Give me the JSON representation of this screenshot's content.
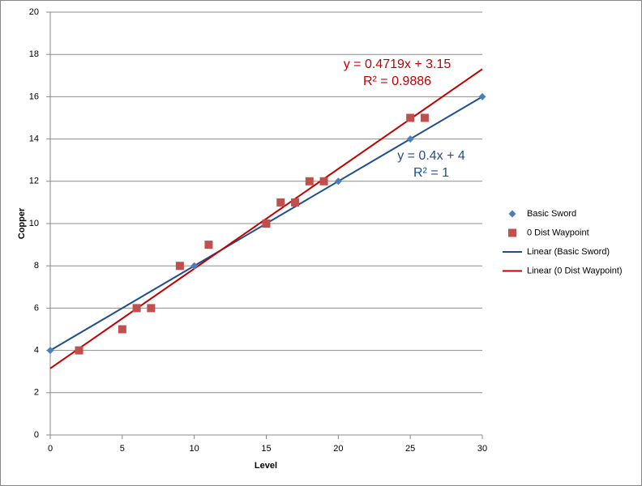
{
  "chart_data": {
    "type": "scatter",
    "x_label": "Level",
    "y_label": "Copper",
    "xlim": [
      0,
      30
    ],
    "xticks": [
      0,
      5,
      10,
      15,
      20,
      25,
      30
    ],
    "ylim": [
      0,
      20
    ],
    "yticks": [
      0,
      2,
      4,
      6,
      8,
      10,
      12,
      14,
      16,
      18,
      20
    ],
    "grid": true,
    "legend": "right",
    "series": [
      {
        "name": "Basic Sword",
        "color": "#4a7ebb",
        "marker": "diamond",
        "x": [
          0,
          10,
          20,
          25,
          30
        ],
        "values": [
          4,
          8,
          12,
          14,
          16
        ]
      },
      {
        "name": "0 Dist Waypoint",
        "color": "#c0504d",
        "marker": "square",
        "x": [
          2,
          5,
          6,
          7,
          9,
          11,
          15,
          16,
          17,
          18,
          19,
          25,
          26
        ],
        "values": [
          4,
          5,
          6,
          6,
          8,
          9,
          10,
          11,
          11,
          12,
          12,
          15,
          15
        ]
      }
    ],
    "trendlines": [
      {
        "name": "Linear (Basic Sword)",
        "color": "#1f4e8c",
        "slope": 0.4,
        "intercept": 4,
        "equation": "y = 0.4x + 4",
        "r_squared": "R² = 1"
      },
      {
        "name": "Linear (0 Dist Waypoint)",
        "color": "#c00000",
        "slope": 0.4719,
        "intercept": 3.15,
        "equation": "y = 0.4719x + 3.15",
        "r_squared": "R² = 0.9886"
      }
    ]
  }
}
